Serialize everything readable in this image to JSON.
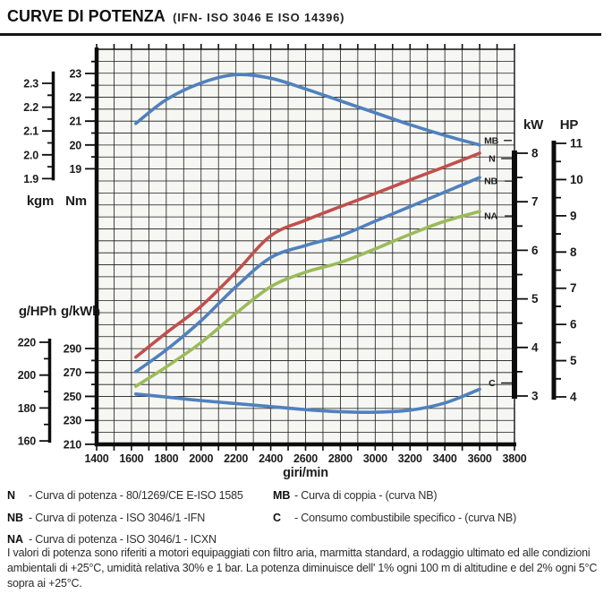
{
  "header": {
    "title": "CURVE DI POTENZA",
    "subtitle": "(IFN- ISO 3046 E ISO 14396)"
  },
  "colors": {
    "blue": "#4f81bd",
    "red": "#c0504d",
    "green": "#9bbb59",
    "grid": "#1a1a1a",
    "plot_bg": "#f6f6f3"
  },
  "chart_data": {
    "type": "line",
    "title": "CURVE DI POTENZA (IFN- ISO 3046 E ISO 14396)",
    "xlabel": "giri/min",
    "x_range": [
      1400,
      3800
    ],
    "x_ticks": [
      1400,
      1600,
      1800,
      2000,
      2200,
      2400,
      2600,
      2800,
      3000,
      3200,
      3400,
      3600,
      3800
    ],
    "grid": true,
    "axes": {
      "torque": {
        "units": [
          "kgm",
          "Nm"
        ],
        "kgm_ticks": [
          2.3,
          2.2,
          2.1,
          2.0,
          1.9
        ],
        "nm_ticks": [
          23,
          22,
          21,
          20,
          19
        ]
      },
      "consumption": {
        "units": [
          "g/HPh",
          "g/kWh"
        ],
        "ghph_ticks": [
          220,
          200,
          180,
          160
        ],
        "gkwh_ticks": [
          290,
          270,
          250,
          230,
          210
        ]
      },
      "power": {
        "units": [
          "kW",
          "HP"
        ],
        "kw_ticks": [
          8,
          7,
          6,
          5,
          4,
          3
        ],
        "hp_ticks": [
          11,
          10,
          9,
          8,
          7,
          6,
          5,
          4
        ]
      }
    },
    "x": [
      1625,
      1800,
      2000,
      2200,
      2400,
      2600,
      2800,
      3000,
      3200,
      3400,
      3600
    ],
    "series": [
      {
        "name": "MB",
        "axis": "Nm",
        "color": "#4f81bd",
        "values": [
          20.9,
          21.9,
          22.6,
          22.95,
          22.8,
          22.35,
          21.85,
          21.35,
          20.85,
          20.4,
          20.0
        ]
      },
      {
        "name": "N",
        "axis": "kW",
        "color": "#c0504d",
        "values": [
          3.8,
          4.3,
          4.85,
          5.55,
          6.3,
          6.62,
          6.9,
          7.17,
          7.45,
          7.72,
          8.0
        ]
      },
      {
        "name": "NB",
        "axis": "kW",
        "color": "#4f81bd",
        "values": [
          3.5,
          3.95,
          4.55,
          5.25,
          5.85,
          6.1,
          6.3,
          6.6,
          6.9,
          7.2,
          7.5
        ]
      },
      {
        "name": "NA",
        "axis": "kW",
        "color": "#9bbb59",
        "values": [
          3.2,
          3.6,
          4.1,
          4.7,
          5.25,
          5.55,
          5.75,
          6.03,
          6.33,
          6.6,
          6.8
        ]
      },
      {
        "name": "C",
        "axis": "g/kWh",
        "color": "#4f81bd",
        "values": [
          252,
          249.5,
          246.5,
          244,
          241.5,
          239,
          237.2,
          236.8,
          238.5,
          244.5,
          256
        ]
      }
    ]
  },
  "legend": {
    "left": [
      {
        "key": "N",
        "desc": "- Curva di potenza - 80/1269/CE E-ISO 1585"
      },
      {
        "key": "NB",
        "desc": "- Curva di potenza  - ISO 3046/1 -IFN"
      },
      {
        "key": "NA",
        "desc": "- Curva di potenza  - ISO 3046/1 - ICXN"
      }
    ],
    "right": [
      {
        "key": "MB",
        "desc": "- Curva di coppia - (curva NB)"
      },
      {
        "key": "C",
        "desc": "- Consumo combustibile specifico - (curva NB)"
      }
    ]
  },
  "footer": {
    "text": "I valori di potenza sono riferiti a motori equipaggiati con filtro aria, marmitta standard, a rodaggio ultimato ed alle condizioni ambientali di +25°C, umidità relativa 30% e 1 bar. La potenza diminuisce dell' 1% ogni 100 m di altitudine e del 2% ogni 5°C sopra ai +25°C."
  }
}
